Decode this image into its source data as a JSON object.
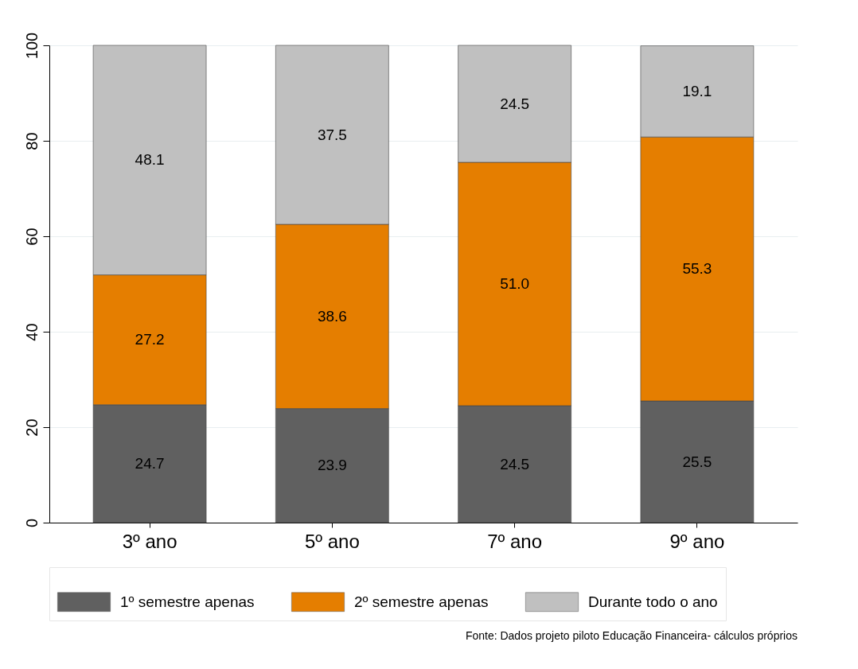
{
  "chart_data": {
    "type": "bar",
    "stacked": true,
    "categories": [
      "3º ano",
      "5º ano",
      "7º ano",
      "9º ano"
    ],
    "series": [
      {
        "name": "1º semestre apenas",
        "color": "#606060",
        "values": [
          24.7,
          23.9,
          24.5,
          25.5
        ],
        "value_labels": [
          "24.7",
          "23.9",
          "24.5",
          "25.5"
        ]
      },
      {
        "name": "2º semestre apenas",
        "color": "#e57e00",
        "values": [
          27.2,
          38.6,
          51.0,
          55.3
        ],
        "value_labels": [
          "27.2",
          "38.6",
          "51.0",
          "55.3"
        ]
      },
      {
        "name": "Durante todo o ano",
        "color": "#c0c0c0",
        "values": [
          48.1,
          37.5,
          24.5,
          19.1
        ],
        "value_labels": [
          "48.1",
          "37.5",
          "24.5",
          "19.1"
        ]
      }
    ],
    "ylim": [
      0,
      100
    ],
    "yticks": [
      0,
      20,
      40,
      60,
      80,
      100
    ],
    "grid": "y",
    "legend": "bottom",
    "annotations": [
      "Fonte: Dados projeto piloto Educação Financeira- cálculos próprios"
    ]
  }
}
